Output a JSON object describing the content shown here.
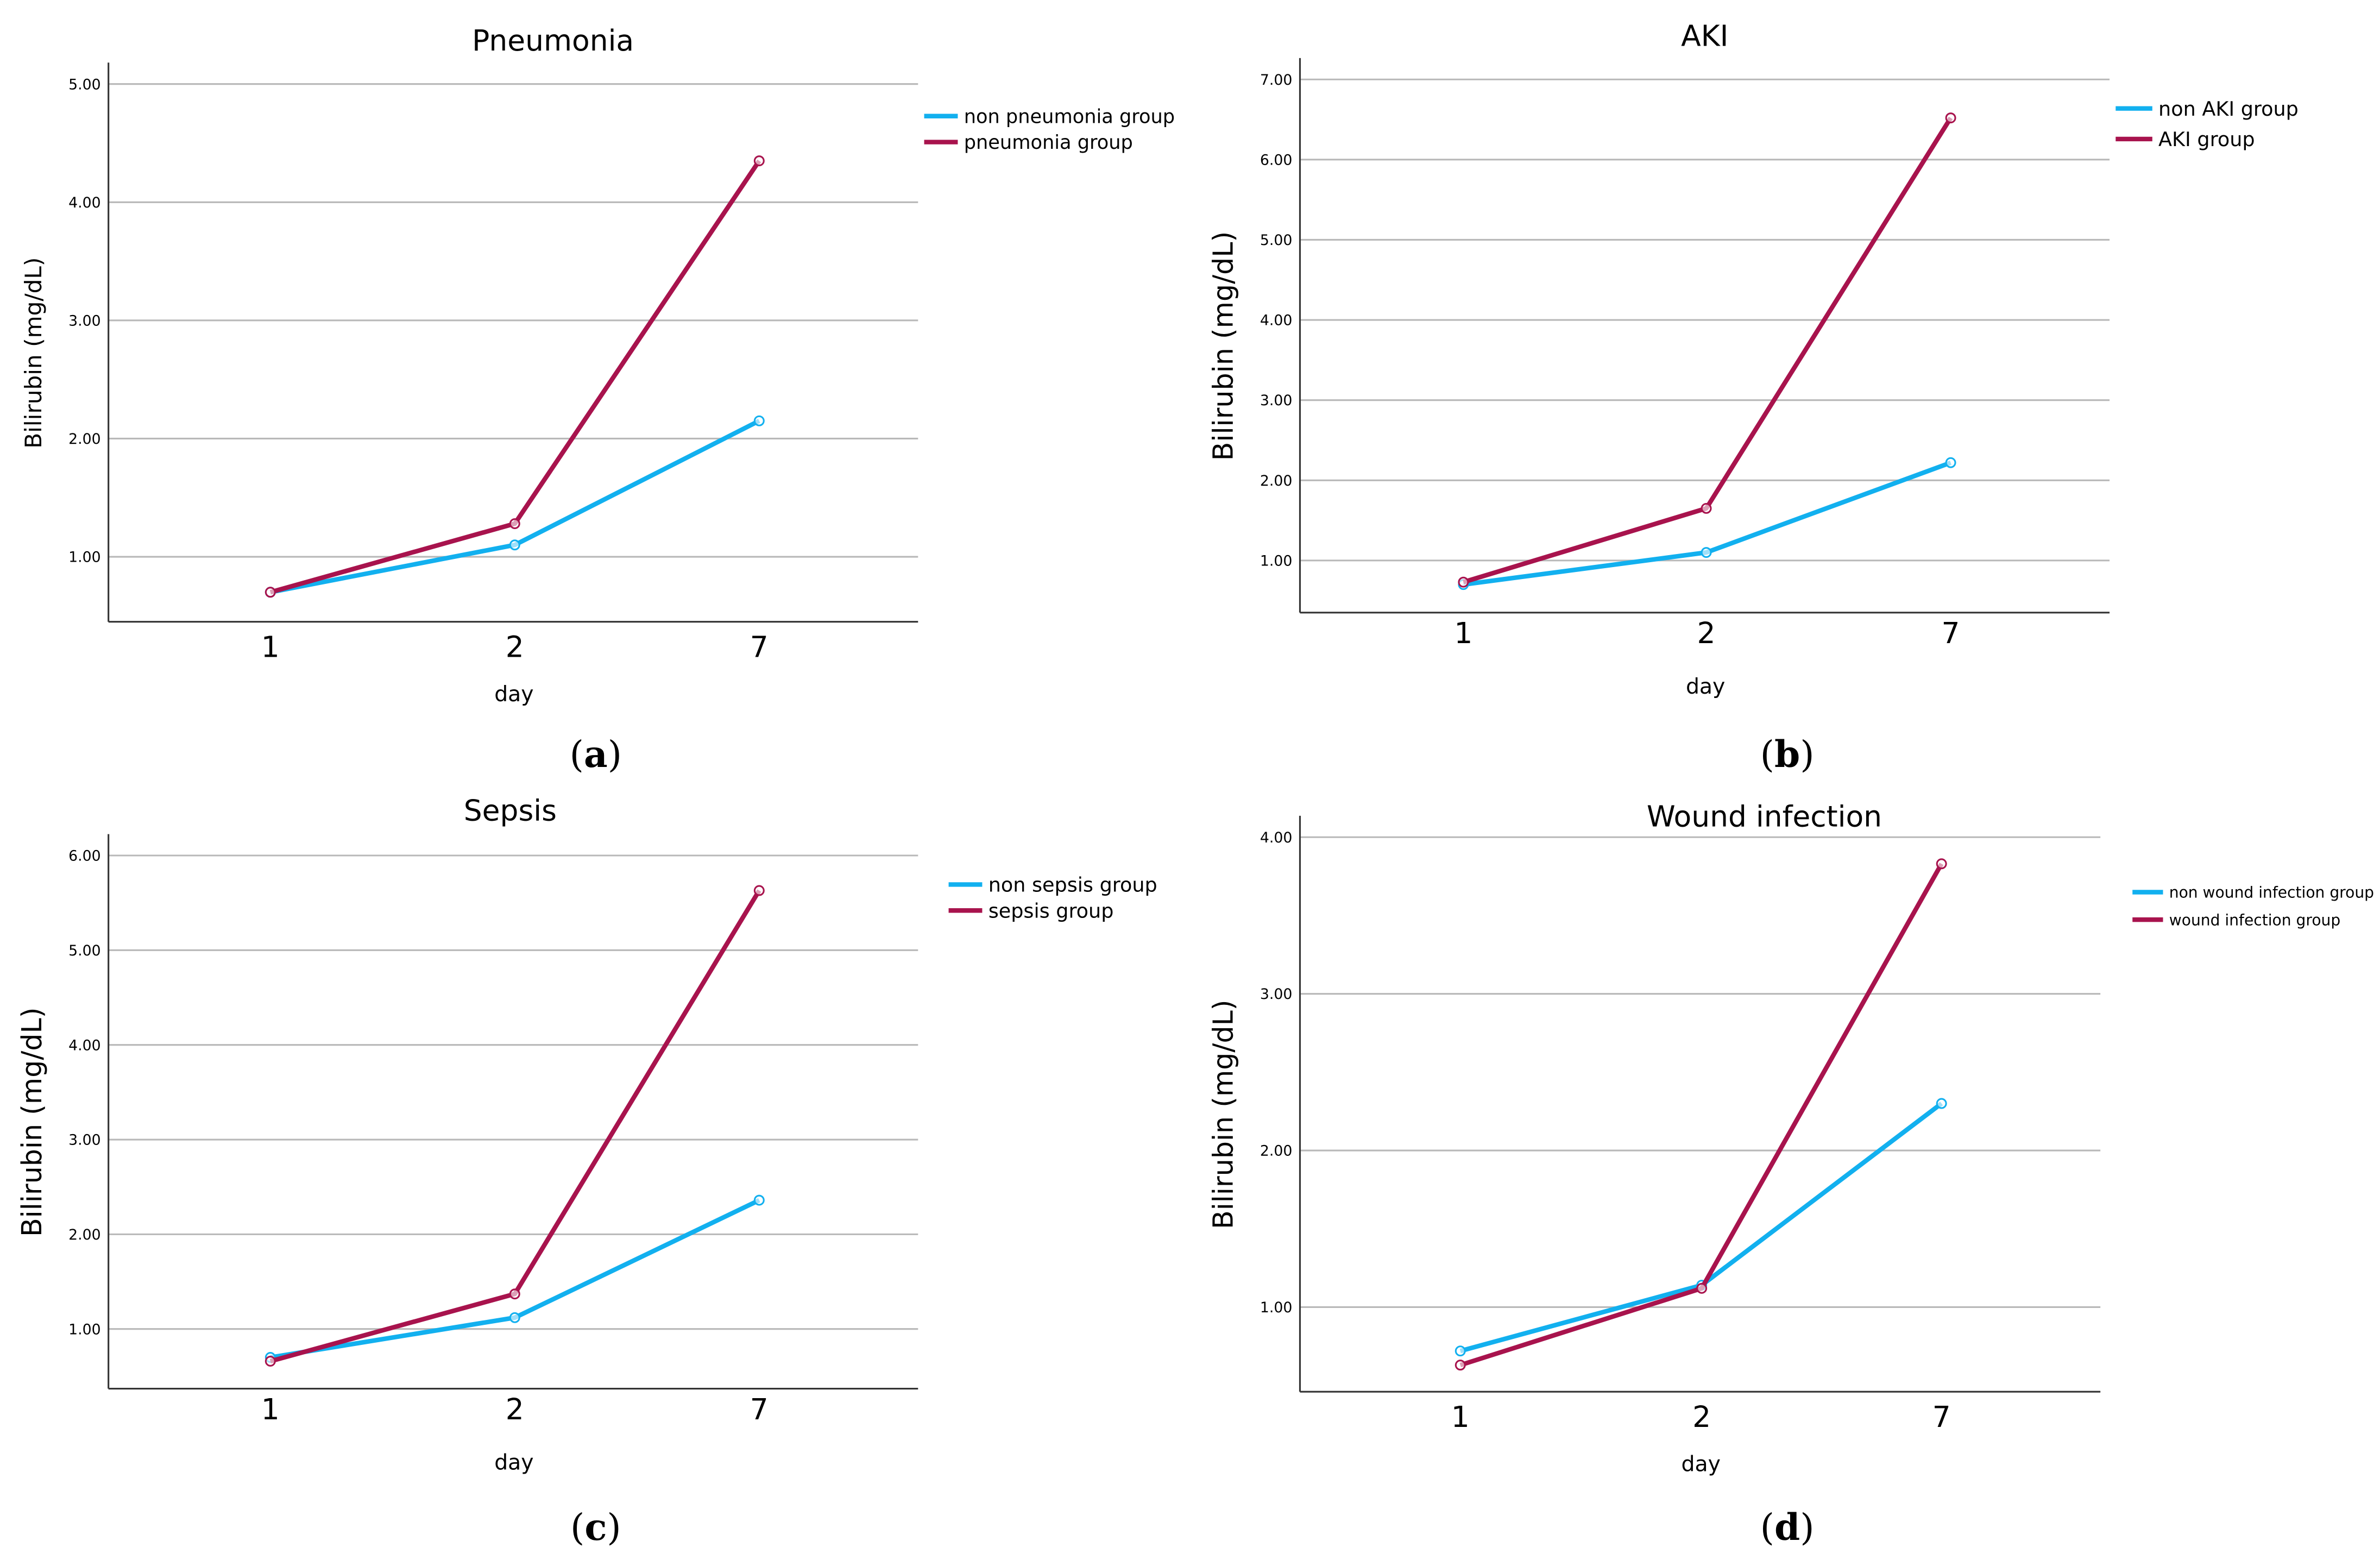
{
  "chart_data": [
    {
      "type": "line",
      "title": "Pneumonia",
      "xlabel": "day",
      "ylabel": "Bilirubin (mg/dL)",
      "categories": [
        "1",
        "2",
        "7"
      ],
      "yticks": [
        "1.00",
        "2.00",
        "3.00",
        "4.00",
        "5.00"
      ],
      "ylim": [
        0.45,
        5.0
      ],
      "series": [
        {
          "name": "non pneumonia group",
          "color": "#12B0EF",
          "values": [
            0.7,
            1.1,
            2.15
          ]
        },
        {
          "name": "pneumonia group",
          "color": "#A8134D",
          "values": [
            0.7,
            1.28,
            4.35
          ]
        }
      ],
      "caption": {
        "open": "(",
        "letter": "a",
        "close": ")"
      }
    },
    {
      "type": "line",
      "title": "AKI",
      "xlabel": "day",
      "ylabel": "Bilirubin (mg/dL)",
      "categories": [
        "1",
        "2",
        "7"
      ],
      "yticks": [
        "1.00",
        "2.00",
        "3.00",
        "4.00",
        "5.00",
        "6.00",
        "7.00"
      ],
      "ylim": [
        0.35,
        7.0
      ],
      "series": [
        {
          "name": "non AKI group",
          "color": "#12B0EF",
          "values": [
            0.7,
            1.1,
            2.22
          ]
        },
        {
          "name": "AKI group",
          "color": "#A8134D",
          "values": [
            0.73,
            1.65,
            6.52
          ]
        }
      ],
      "caption": {
        "open": "(",
        "letter": "b",
        "close": ")"
      }
    },
    {
      "type": "line",
      "title": "Sepsis",
      "xlabel": "day",
      "ylabel": "Bilirubin (mg/dL)",
      "categories": [
        "1",
        "2",
        "7"
      ],
      "yticks": [
        "1.00",
        "2.00",
        "3.00",
        "4.00",
        "5.00",
        "6.00"
      ],
      "ylim": [
        0.37,
        6.0
      ],
      "series": [
        {
          "name": "non sepsis group",
          "color": "#12B0EF",
          "values": [
            0.7,
            1.12,
            2.36
          ]
        },
        {
          "name": "sepsis group",
          "color": "#A8134D",
          "values": [
            0.66,
            1.37,
            5.63
          ]
        }
      ],
      "caption": {
        "open": "(",
        "letter": "c",
        "close": ")"
      }
    },
    {
      "type": "line",
      "title": "Wound infection",
      "xlabel": "day",
      "ylabel": "Bilirubin (mg/dL)",
      "categories": [
        "1",
        "2",
        "7"
      ],
      "yticks": [
        "1.00",
        "2.00",
        "3.00",
        "4.00"
      ],
      "ylim": [
        0.46,
        4.0
      ],
      "series": [
        {
          "name": "non wound infection group",
          "color": "#12B0EF",
          "values": [
            0.72,
            1.14,
            2.3
          ]
        },
        {
          "name": "wound infection group",
          "color": "#A8134D",
          "values": [
            0.63,
            1.12,
            3.83
          ]
        }
      ],
      "caption": {
        "open": "(",
        "letter": "d",
        "close": ")"
      }
    }
  ]
}
